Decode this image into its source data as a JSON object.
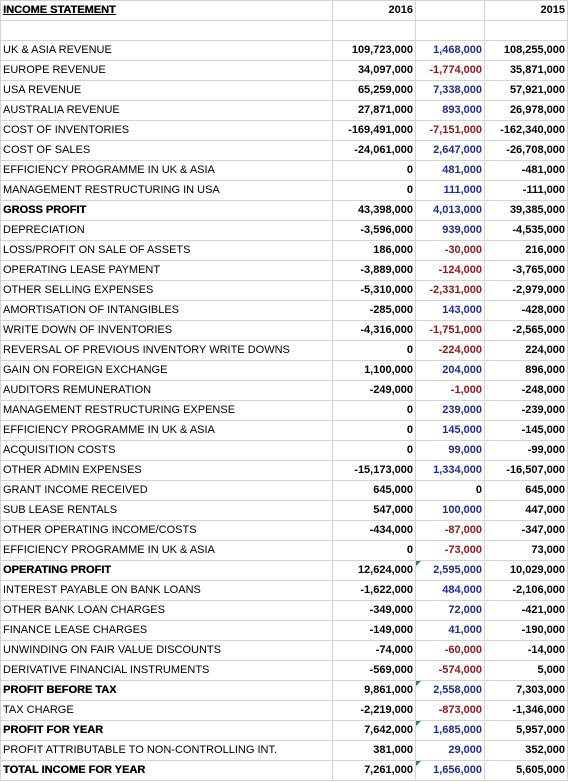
{
  "header": {
    "title": "INCOME STATEMENT",
    "col_2016": "2016",
    "col_diff": "",
    "col_2015": "2015"
  },
  "rows": [
    {
      "label": "UK & ASIA REVENUE",
      "v2016": "109,723,000",
      "diff": "1,468,000",
      "v2015": "108,255,000"
    },
    {
      "label": "EUROPE REVENUE",
      "v2016": "34,097,000",
      "diff": "-1,774,000",
      "v2015": "35,871,000"
    },
    {
      "label": "USA REVENUE",
      "v2016": "65,259,000",
      "diff": "7,338,000",
      "v2015": "57,921,000"
    },
    {
      "label": "AUSTRALIA REVENUE",
      "v2016": "27,871,000",
      "diff": "893,000",
      "v2015": "26,978,000"
    },
    {
      "label": "COST OF INVENTORIES",
      "v2016": "-169,491,000",
      "diff": "-7,151,000",
      "v2015": "-162,340,000"
    },
    {
      "label": "COST OF SALES",
      "v2016": "-24,061,000",
      "diff": "2,647,000",
      "v2015": "-26,708,000"
    },
    {
      "label": "EFFICIENCY PROGRAMME IN UK & ASIA",
      "v2016": "0",
      "diff": "481,000",
      "v2015": "-481,000"
    },
    {
      "label": "MANAGEMENT RESTRUCTURING IN USA",
      "v2016": "0",
      "diff": "111,000",
      "v2015": "-111,000"
    },
    {
      "label": "GROSS PROFIT",
      "v2016": "43,398,000",
      "diff": "4,013,000",
      "v2015": "39,385,000",
      "bold": true
    },
    {
      "label": "DEPRECIATION",
      "v2016": "-3,596,000",
      "diff": "939,000",
      "v2015": "-4,535,000"
    },
    {
      "label": "LOSS/PROFIT ON SALE OF ASSETS",
      "v2016": "186,000",
      "diff": "-30,000",
      "v2015": "216,000"
    },
    {
      "label": "OPERATING LEASE PAYMENT",
      "v2016": "-3,889,000",
      "diff": "-124,000",
      "v2015": "-3,765,000"
    },
    {
      "label": "OTHER SELLING EXPENSES",
      "v2016": "-5,310,000",
      "diff": "-2,331,000",
      "v2015": "-2,979,000"
    },
    {
      "label": "AMORTISATION OF INTANGIBLES",
      "v2016": "-285,000",
      "diff": "143,000",
      "v2015": "-428,000"
    },
    {
      "label": "WRITE DOWN OF INVENTORIES",
      "v2016": "-4,316,000",
      "diff": "-1,751,000",
      "v2015": "-2,565,000"
    },
    {
      "label": "REVERSAL OF PREVIOUS INVENTORY WRITE DOWNS",
      "v2016": "0",
      "diff": "-224,000",
      "v2015": "224,000"
    },
    {
      "label": "GAIN ON FOREIGN EXCHANGE",
      "v2016": "1,100,000",
      "diff": "204,000",
      "v2015": "896,000"
    },
    {
      "label": "AUDITORS REMUNERATION",
      "v2016": "-249,000",
      "diff": "-1,000",
      "v2015": "-248,000"
    },
    {
      "label": "MANAGEMENT RESTRUCTURING EXPENSE",
      "v2016": "0",
      "diff": "239,000",
      "v2015": "-239,000"
    },
    {
      "label": "EFFICIENCY PROGRAMME IN UK & ASIA",
      "v2016": "0",
      "diff": "145,000",
      "v2015": "-145,000"
    },
    {
      "label": "ACQUISITION COSTS",
      "v2016": "0",
      "diff": "99,000",
      "v2015": "-99,000"
    },
    {
      "label": "OTHER ADMIN EXPENSES",
      "v2016": "-15,173,000",
      "diff": "1,334,000",
      "v2015": "-16,507,000"
    },
    {
      "label": "GRANT INCOME RECEIVED",
      "v2016": "645,000",
      "diff": "0",
      "v2015": "645,000"
    },
    {
      "label": "SUB LEASE RENTALS",
      "v2016": "547,000",
      "diff": "100,000",
      "v2015": "447,000"
    },
    {
      "label": "OTHER OPERATING INCOME/COSTS",
      "v2016": "-434,000",
      "diff": "-87,000",
      "v2015": "-347,000"
    },
    {
      "label": "EFFICIENCY PROGRAMME IN UK & ASIA",
      "v2016": "0",
      "diff": "-73,000",
      "v2015": "73,000"
    },
    {
      "label": "OPERATING PROFIT",
      "v2016": "12,624,000",
      "diff": "2,595,000",
      "v2015": "10,029,000",
      "bold": true,
      "flag": true
    },
    {
      "label": "INTEREST PAYABLE ON BANK LOANS",
      "v2016": "-1,622,000",
      "diff": "484,000",
      "v2015": "-2,106,000"
    },
    {
      "label": "OTHER BANK LOAN CHARGES",
      "v2016": "-349,000",
      "diff": "72,000",
      "v2015": "-421,000"
    },
    {
      "label": "FINANCE LEASE CHARGES",
      "v2016": "-149,000",
      "diff": "41,000",
      "v2015": "-190,000"
    },
    {
      "label": "UNWINDING ON FAIR VALUE DISCOUNTS",
      "v2016": "-74,000",
      "diff": "-60,000",
      "v2015": "-14,000"
    },
    {
      "label": "DERIVATIVE FINANCIAL INSTRUMENTS",
      "v2016": "-569,000",
      "diff": "-574,000",
      "v2015": "5,000"
    },
    {
      "label": "PROFIT BEFORE TAX",
      "v2016": "9,861,000",
      "diff": "2,558,000",
      "v2015": "7,303,000",
      "bold": true,
      "flag": true
    },
    {
      "label": "TAX CHARGE",
      "v2016": "-2,219,000",
      "diff": "-873,000",
      "v2015": "-1,346,000"
    },
    {
      "label": "PROFIT FOR YEAR",
      "v2016": "7,642,000",
      "diff": "1,685,000",
      "v2015": "5,957,000",
      "bold": true,
      "flag": true
    },
    {
      "label": "PROFIT ATTRIBUTABLE TO NON-CONTROLLING INT.",
      "v2016": "381,000",
      "diff": "29,000",
      "v2015": "352,000"
    },
    {
      "label": "TOTAL INCOME FOR YEAR",
      "v2016": "7,261,000",
      "diff": "1,656,000",
      "v2015": "5,605,000",
      "bold": true,
      "flag": true
    }
  ],
  "colors": {
    "positive_diff": "#1f2f8f",
    "negative_diff": "#8b1a1a",
    "gridline": "#d4d4d4",
    "flag": "#2e8b3a"
  }
}
